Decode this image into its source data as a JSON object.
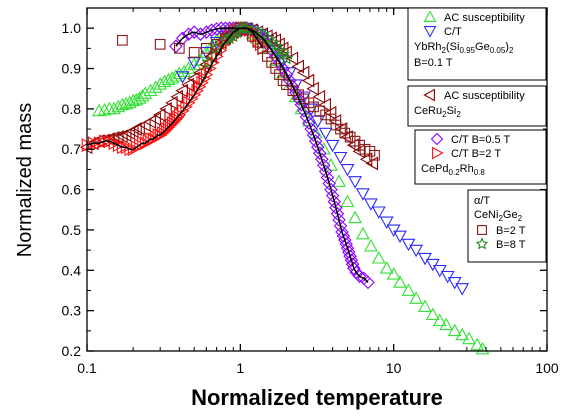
{
  "chart_data": {
    "type": "scatter",
    "xlabel": "Normalized temperature",
    "ylabel": "Normalized mass",
    "x_scale": "log",
    "xlim": [
      0.1,
      100
    ],
    "ylim": [
      0.2,
      1.05
    ],
    "x_ticks": [
      "0.1",
      "1",
      "10",
      "100"
    ],
    "y_ticks": [
      "0.2",
      "0.3",
      "0.4",
      "0.5",
      "0.6",
      "0.7",
      "0.8",
      "0.9",
      "1.0"
    ],
    "grid": false,
    "legend_groups": [
      {
        "material": [
          "YbRh",
          "2",
          "(Si",
          "0.95",
          "Ge",
          "0.05",
          ")",
          "2"
        ],
        "field": "B=0.1 T",
        "entries": [
          "AC susceptibility",
          "C/T"
        ]
      },
      {
        "material": [
          "CeRu",
          "2",
          "Si",
          "2"
        ],
        "entries": [
          "AC susceptibility"
        ]
      },
      {
        "material": [
          "CePd",
          "0.2",
          "Rh",
          "0.8"
        ],
        "entries": [
          "C/T B=0.5 T",
          "C/T B=2 T"
        ]
      },
      {
        "header": "α/T",
        "material": [
          "CeNi",
          "2",
          "Ge",
          "2"
        ],
        "entries": [
          "B=2 T",
          "B=8 T"
        ]
      }
    ],
    "series": [
      {
        "name": "AC susceptibility",
        "group": "YbRh2(Si0.95Ge0.05)2",
        "marker": "triangle-up",
        "color": "#33e033",
        "filled": false,
        "x": [
          0.12,
          0.13,
          0.14,
          0.15,
          0.16,
          0.17,
          0.18,
          0.19,
          0.2,
          0.21,
          0.22,
          0.23,
          0.24,
          0.26,
          0.28,
          0.3,
          0.32,
          0.34,
          0.36,
          0.38,
          0.4,
          0.43,
          0.46,
          0.5,
          0.55,
          0.6,
          0.65,
          0.7,
          0.75,
          0.8,
          0.85,
          0.9,
          0.95,
          1.0,
          1.1,
          1.2,
          1.3,
          1.4,
          1.5,
          1.7,
          1.9,
          2.1,
          2.3,
          2.5,
          2.8,
          3.1,
          3.5,
          3.9,
          4.4,
          5.0,
          5.6,
          6.3,
          7.1,
          8.0,
          9.0,
          10,
          11,
          12.5,
          14,
          16,
          18,
          20,
          22,
          25,
          28,
          31,
          35,
          38
        ],
        "y": [
          0.795,
          0.797,
          0.8,
          0.8,
          0.805,
          0.81,
          0.812,
          0.815,
          0.82,
          0.822,
          0.826,
          0.832,
          0.838,
          0.845,
          0.853,
          0.861,
          0.867,
          0.872,
          0.876,
          0.881,
          0.887,
          0.892,
          0.9,
          0.91,
          0.92,
          0.94,
          0.955,
          0.97,
          0.98,
          0.99,
          0.995,
          1.0,
          1.0,
          1.0,
          0.995,
          0.985,
          0.975,
          0.965,
          0.95,
          0.92,
          0.89,
          0.86,
          0.83,
          0.8,
          0.77,
          0.74,
          0.7,
          0.66,
          0.62,
          0.57,
          0.53,
          0.49,
          0.46,
          0.43,
          0.405,
          0.39,
          0.37,
          0.35,
          0.33,
          0.31,
          0.29,
          0.275,
          0.265,
          0.25,
          0.24,
          0.23,
          0.215,
          0.205
        ]
      },
      {
        "name": "C/T",
        "group": "YbRh2(Si0.95Ge0.05)2",
        "marker": "triangle-down",
        "color": "#2b2bff",
        "filled": false,
        "x": [
          0.42,
          0.5,
          0.6,
          0.7,
          0.8,
          0.9,
          1.0,
          1.1,
          1.2,
          1.35,
          1.5,
          1.7,
          1.9,
          2.1,
          2.3,
          2.6,
          2.9,
          3.2,
          3.6,
          4.0,
          4.5,
          5.0,
          5.6,
          6.3,
          7.1,
          8.0,
          9.0,
          10,
          11,
          12.5,
          14,
          16,
          18,
          20,
          22.5,
          25,
          28
        ],
        "y": [
          0.88,
          0.915,
          0.94,
          0.965,
          0.98,
          0.99,
          1.0,
          1.0,
          0.995,
          0.985,
          0.97,
          0.945,
          0.92,
          0.89,
          0.86,
          0.83,
          0.8,
          0.77,
          0.74,
          0.71,
          0.68,
          0.65,
          0.62,
          0.59,
          0.565,
          0.545,
          0.52,
          0.5,
          0.485,
          0.465,
          0.45,
          0.43,
          0.415,
          0.4,
          0.385,
          0.37,
          0.355
        ]
      },
      {
        "name": "AC susceptibility",
        "group": "CeRu2Si2",
        "marker": "triangle-left",
        "color": "#8b0000",
        "filled": false,
        "x": [
          0.1,
          0.11,
          0.12,
          0.13,
          0.14,
          0.15,
          0.16,
          0.17,
          0.18,
          0.19,
          0.2,
          0.21,
          0.22,
          0.24,
          0.26,
          0.28,
          0.3,
          0.33,
          0.36,
          0.39,
          0.42,
          0.46,
          0.5,
          0.55,
          0.6,
          0.65,
          0.7,
          0.75,
          0.8,
          0.85,
          0.9,
          0.95,
          1.0,
          1.1,
          1.2,
          1.3,
          1.4,
          1.5,
          1.6,
          1.7,
          1.8,
          1.9,
          2.0,
          2.2,
          2.4,
          2.6,
          2.8,
          3.0,
          3.3,
          3.6,
          3.9,
          4.2,
          4.6,
          5.0,
          5.5,
          6.0,
          6.7,
          7.3
        ],
        "y": [
          0.705,
          0.715,
          0.72,
          0.722,
          0.725,
          0.728,
          0.73,
          0.732,
          0.735,
          0.74,
          0.745,
          0.75,
          0.752,
          0.76,
          0.768,
          0.775,
          0.785,
          0.8,
          0.815,
          0.83,
          0.845,
          0.86,
          0.875,
          0.89,
          0.91,
          0.93,
          0.95,
          0.965,
          0.975,
          0.985,
          0.99,
          0.995,
          1.0,
          0.998,
          0.995,
          0.99,
          0.985,
          0.98,
          0.975,
          0.97,
          0.96,
          0.95,
          0.94,
          0.925,
          0.905,
          0.89,
          0.87,
          0.85,
          0.83,
          0.81,
          0.79,
          0.77,
          0.75,
          0.73,
          0.71,
          0.695,
          0.675,
          0.665
        ]
      },
      {
        "name": "C/T B=0.5 T",
        "group": "CePd0.2Rh0.8",
        "marker": "diamond",
        "color": "#8b00ff",
        "filled": false,
        "x": [
          0.38,
          0.42,
          0.46,
          0.5,
          0.55,
          0.6,
          0.65,
          0.7,
          0.75,
          0.8,
          0.85,
          0.9,
          0.95,
          1.0,
          1.05,
          1.1,
          1.15,
          1.2,
          1.3,
          1.4,
          1.5,
          1.6,
          1.7,
          1.8,
          1.9,
          2.0,
          2.1,
          2.2,
          2.3,
          2.4,
          2.5,
          2.6,
          2.7,
          2.8,
          2.9,
          3.0,
          3.1,
          3.2,
          3.3,
          3.4,
          3.5,
          3.6,
          3.7,
          3.8,
          3.9,
          4.0,
          4.1,
          4.2,
          4.3,
          4.4,
          4.5,
          4.6,
          4.7,
          4.8,
          4.9,
          5.0,
          5.1,
          5.2,
          5.3,
          5.4,
          5.5,
          5.7,
          6.0,
          6.4,
          6.8
        ],
        "y": [
          0.955,
          0.975,
          0.985,
          0.99,
          0.985,
          0.99,
          0.995,
          0.998,
          1.0,
          1.0,
          1.0,
          1.0,
          1.0,
          1.0,
          1.0,
          1.0,
          0.998,
          0.995,
          0.985,
          0.975,
          0.96,
          0.945,
          0.93,
          0.915,
          0.9,
          0.885,
          0.87,
          0.855,
          0.84,
          0.825,
          0.81,
          0.795,
          0.78,
          0.765,
          0.75,
          0.735,
          0.72,
          0.705,
          0.69,
          0.675,
          0.66,
          0.645,
          0.63,
          0.615,
          0.6,
          0.585,
          0.57,
          0.555,
          0.54,
          0.525,
          0.51,
          0.495,
          0.485,
          0.475,
          0.465,
          0.455,
          0.445,
          0.435,
          0.425,
          0.415,
          0.405,
          0.395,
          0.385,
          0.38,
          0.37
        ]
      },
      {
        "name": "C/T B=2 T",
        "group": "CePd0.2Rh0.8",
        "marker": "triangle-right",
        "color": "#ff1010",
        "filled": false,
        "x": [
          0.1,
          0.11,
          0.12,
          0.13,
          0.14,
          0.15,
          0.16,
          0.17,
          0.18,
          0.19,
          0.2,
          0.21,
          0.22,
          0.23,
          0.24,
          0.25,
          0.26,
          0.27,
          0.28,
          0.29,
          0.3,
          0.31,
          0.32,
          0.33,
          0.34,
          0.35,
          0.36,
          0.37,
          0.38,
          0.39,
          0.4,
          0.42,
          0.44,
          0.46,
          0.48,
          0.5,
          0.52,
          0.54,
          0.56,
          0.58,
          0.6,
          0.63,
          0.66,
          0.7,
          0.74,
          0.78,
          0.82,
          0.86,
          0.9,
          0.95,
          1.0,
          1.05,
          1.1,
          1.15,
          1.2,
          1.25,
          1.3,
          1.35,
          1.4
        ],
        "y": [
          0.71,
          0.715,
          0.715,
          0.72,
          0.72,
          0.715,
          0.71,
          0.705,
          0.705,
          0.7,
          0.7,
          0.705,
          0.71,
          0.715,
          0.715,
          0.72,
          0.725,
          0.725,
          0.73,
          0.735,
          0.735,
          0.74,
          0.745,
          0.75,
          0.755,
          0.76,
          0.765,
          0.77,
          0.775,
          0.78,
          0.785,
          0.795,
          0.805,
          0.815,
          0.825,
          0.835,
          0.845,
          0.855,
          0.865,
          0.875,
          0.885,
          0.9,
          0.915,
          0.93,
          0.945,
          0.96,
          0.97,
          0.98,
          0.99,
          0.995,
          1.0,
          1.0,
          1.0,
          0.995,
          0.99,
          0.98,
          0.97,
          0.96,
          0.95
        ]
      },
      {
        "name": "B=2 T",
        "group": "CeNi2Ge2",
        "marker": "square",
        "color": "#8b1a1a",
        "filled": false,
        "x": [
          0.17,
          0.3,
          0.4,
          0.5,
          0.6,
          0.7,
          0.8,
          0.9,
          1.0,
          1.1,
          1.2,
          1.3,
          1.4,
          1.5,
          1.6,
          1.7,
          1.8,
          1.9,
          2.0,
          2.2,
          2.4,
          2.6,
          2.8,
          3.0,
          3.3,
          3.6,
          3.9,
          4.2,
          4.5,
          4.8,
          5.2,
          5.6,
          6.0,
          6.5,
          7.0,
          7.5
        ],
        "y": [
          0.97,
          0.96,
          0.95,
          0.94,
          0.95,
          0.96,
          0.975,
          0.99,
          1.0,
          0.995,
          0.98,
          0.965,
          0.95,
          0.93,
          0.915,
          0.9,
          0.885,
          0.87,
          0.86,
          0.845,
          0.835,
          0.825,
          0.815,
          0.805,
          0.795,
          0.785,
          0.775,
          0.76,
          0.75,
          0.74,
          0.73,
          0.72,
          0.71,
          0.7,
          0.695,
          0.685
        ]
      },
      {
        "name": "B=8 T",
        "group": "CeNi2Ge2",
        "marker": "star",
        "color": "#228b22",
        "filled": false,
        "x": [
          0.62,
          0.7,
          0.8,
          0.85,
          0.9,
          0.95,
          1.0,
          1.05,
          1.1,
          1.2,
          1.3,
          1.4,
          1.5,
          1.6,
          1.7,
          1.8,
          1.9,
          2.0
        ],
        "y": [
          0.915,
          0.95,
          0.97,
          0.975,
          0.98,
          0.99,
          1.0,
          1.0,
          1.0,
          0.995,
          0.99,
          0.985,
          0.975,
          0.965,
          0.955,
          0.945,
          0.935,
          0.925
        ]
      }
    ]
  }
}
